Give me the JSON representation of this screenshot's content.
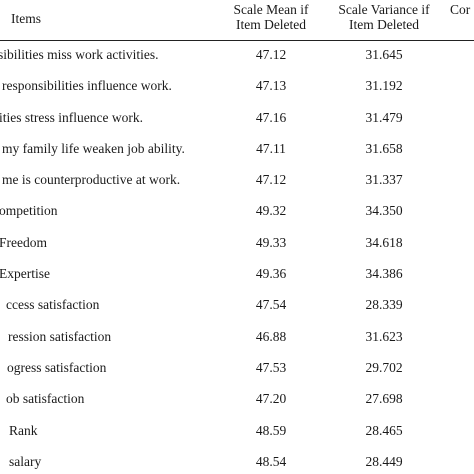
{
  "header": {
    "items": "Items",
    "mean_line1": "Scale Mean if",
    "mean_line2": "Item Deleted",
    "var_line1": "Scale Variance if",
    "var_line2": "Item Deleted",
    "corr": "Cor"
  },
  "rows": [
    {
      "item": "sibilities miss work activities.",
      "mean": "47.12",
      "variance": "31.645"
    },
    {
      "item": "responsibilities influence work.",
      "mean": "47.13",
      "variance": "31.192"
    },
    {
      "item": "ities stress influence work.",
      "mean": "47.16",
      "variance": "31.479"
    },
    {
      "item": "my family life weaken job ability.",
      "mean": "47.11",
      "variance": "31.658"
    },
    {
      "item": "me is counterproductive at work.",
      "mean": "47.12",
      "variance": "31.337"
    },
    {
      "item": "ompetition",
      "mean": "49.32",
      "variance": "34.350"
    },
    {
      "item": "Freedom",
      "mean": "49.33",
      "variance": "34.618"
    },
    {
      "item": "Expertise",
      "mean": "49.36",
      "variance": "34.386"
    },
    {
      "item": "ccess satisfaction",
      "mean": "47.54",
      "variance": "28.339"
    },
    {
      "item": "ression satisfaction",
      "mean": "46.88",
      "variance": "31.623"
    },
    {
      "item": "ogress satisfaction",
      "mean": "47.53",
      "variance": "29.702"
    },
    {
      "item": "ob satisfaction",
      "mean": "47.20",
      "variance": "27.698"
    },
    {
      "item": "Rank",
      "mean": "48.59",
      "variance": "28.465"
    },
    {
      "item": "salary",
      "mean": "48.54",
      "variance": "28.449"
    }
  ]
}
